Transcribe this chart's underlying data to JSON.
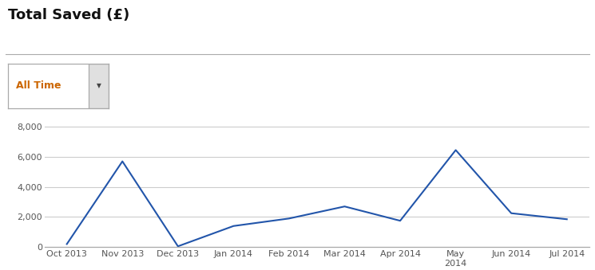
{
  "title": "Total Saved (£)",
  "dropdown_label": "All Time",
  "x_labels_display": [
    "Oct 2013",
    "Nov 2013",
    "Dec 2013",
    "Jan 2014",
    "Feb 2014",
    "Mar 2014",
    "Apr 2014",
    "May\n2014",
    "Jun 2014",
    "Jul 2014"
  ],
  "y_values": [
    200,
    5700,
    50,
    1400,
    1900,
    2700,
    1750,
    6450,
    2250,
    1850
  ],
  "ylim": [
    0,
    8800
  ],
  "yticks": [
    0,
    2000,
    4000,
    6000,
    8000
  ],
  "ytick_labels": [
    "0",
    "2,000",
    "4,000",
    "6,000",
    "8,000"
  ],
  "line_color": "#2255aa",
  "line_width": 1.5,
  "background_color": "#ffffff",
  "grid_color": "#cccccc",
  "title_fontsize": 13,
  "tick_fontsize": 8,
  "dropdown_text_color": "#cc6600",
  "title_color": "#111111",
  "tick_color": "#555555"
}
